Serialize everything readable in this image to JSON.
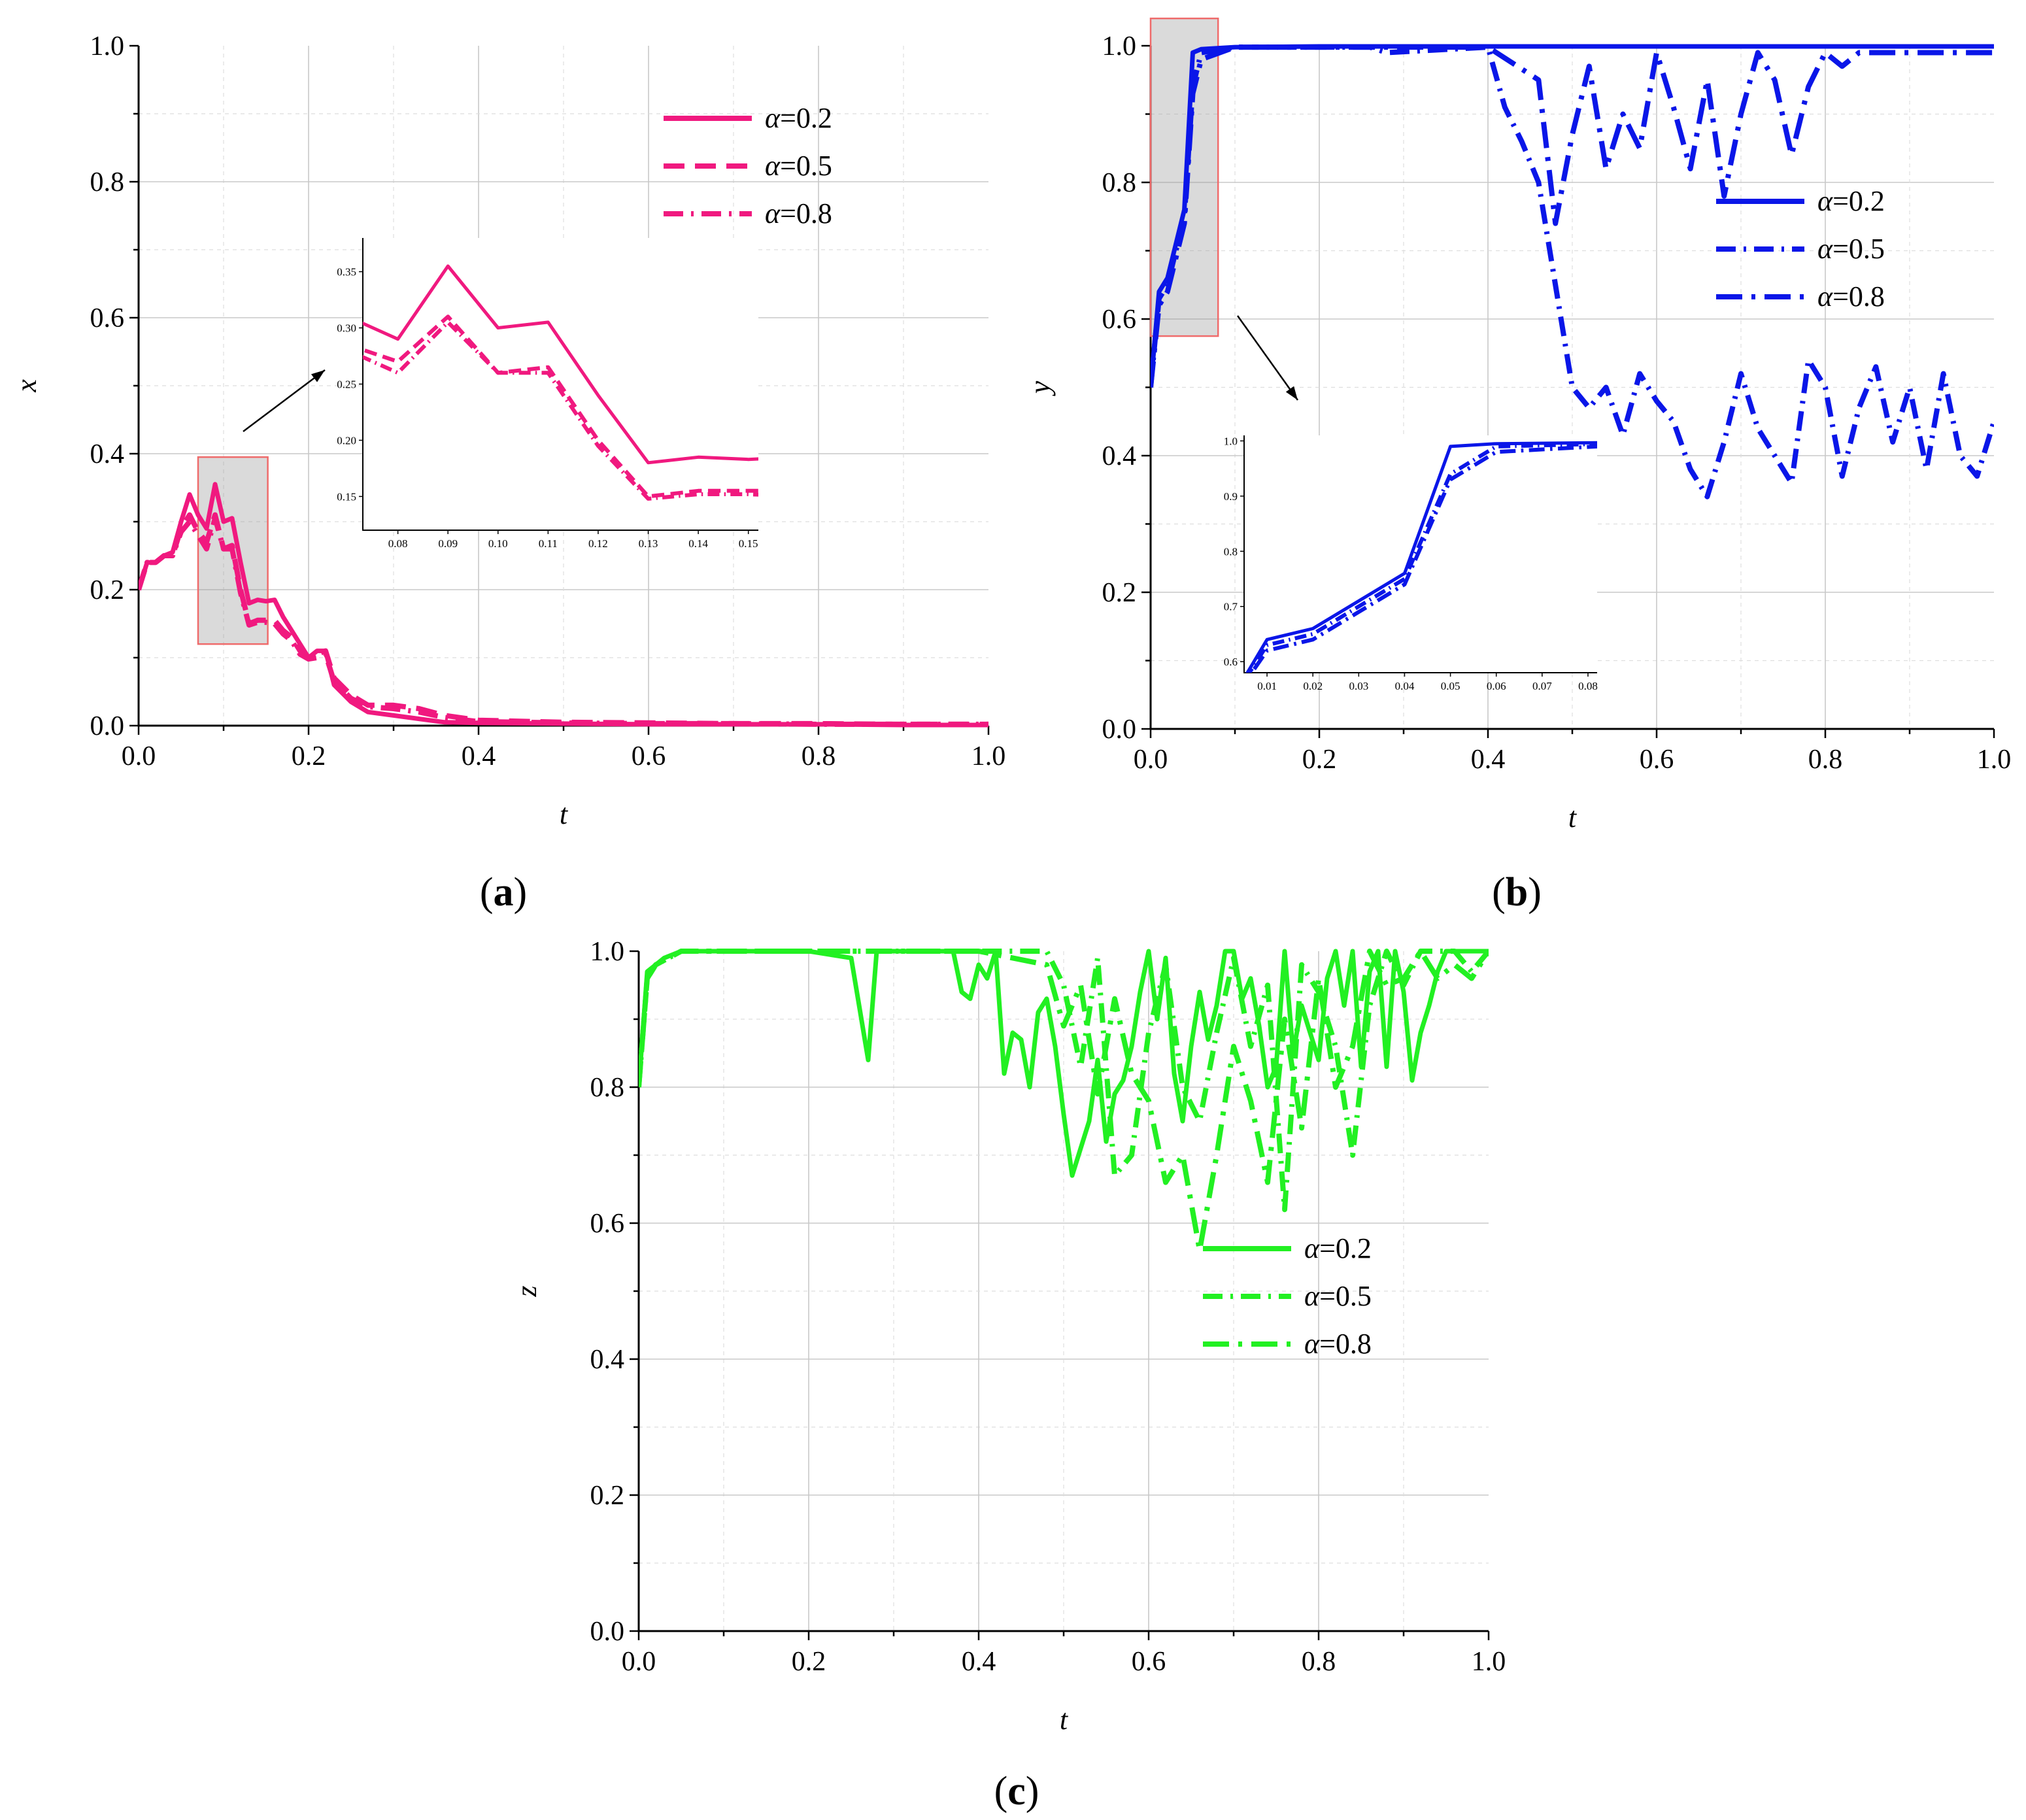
{
  "figure_title": "",
  "chart_data": [
    {
      "panel": "(a)",
      "type": "line",
      "xlabel": "t",
      "ylabel": "x",
      "xlim": [
        0,
        1
      ],
      "ylim": [
        0,
        1
      ],
      "xticks": [
        "0.0",
        "0.2",
        "0.4",
        "0.6",
        "0.8",
        "1.0"
      ],
      "yticks": [
        "0.0",
        "0.2",
        "0.4",
        "0.6",
        "0.8",
        "1.0"
      ],
      "color": "#f0197f",
      "legend_position": "top-right",
      "series": [
        {
          "name": "α=0.2",
          "style": "solid",
          "x": [
            0,
            0.01,
            0.02,
            0.03,
            0.04,
            0.05,
            0.06,
            0.07,
            0.08,
            0.09,
            0.1,
            0.11,
            0.12,
            0.13,
            0.14,
            0.15,
            0.16,
            0.17,
            0.18,
            0.19,
            0.2,
            0.21,
            0.22,
            0.23,
            0.25,
            0.27,
            0.3,
            0.33,
            0.36,
            0.4,
            0.5,
            0.6,
            0.7,
            0.8,
            0.9,
            1.0
          ],
          "y": [
            0.2,
            0.24,
            0.24,
            0.25,
            0.255,
            0.3,
            0.34,
            0.31,
            0.29,
            0.355,
            0.3,
            0.305,
            0.24,
            0.18,
            0.185,
            0.183,
            0.185,
            0.16,
            0.14,
            0.12,
            0.1,
            0.11,
            0.11,
            0.06,
            0.035,
            0.02,
            0.015,
            0.01,
            0.005,
            0.004,
            0.003,
            0.002,
            0.002,
            0.002,
            0.001,
            0.001
          ]
        },
        {
          "name": "α=0.5",
          "style": "dashed",
          "x": [
            0,
            0.01,
            0.02,
            0.03,
            0.04,
            0.05,
            0.06,
            0.07,
            0.08,
            0.09,
            0.1,
            0.11,
            0.12,
            0.13,
            0.14,
            0.15,
            0.16,
            0.17,
            0.18,
            0.19,
            0.2,
            0.21,
            0.22,
            0.23,
            0.25,
            0.27,
            0.3,
            0.33,
            0.36,
            0.4,
            0.5,
            0.6,
            0.7,
            0.8,
            0.9,
            1.0
          ],
          "y": [
            0.2,
            0.24,
            0.24,
            0.25,
            0.25,
            0.29,
            0.31,
            0.285,
            0.27,
            0.31,
            0.26,
            0.265,
            0.2,
            0.15,
            0.155,
            0.155,
            0.155,
            0.14,
            0.13,
            0.11,
            0.1,
            0.105,
            0.11,
            0.07,
            0.045,
            0.03,
            0.03,
            0.025,
            0.015,
            0.008,
            0.005,
            0.004,
            0.003,
            0.003,
            0.002,
            0.002
          ]
        },
        {
          "name": "α=0.8",
          "style": "dash-dot",
          "x": [
            0,
            0.01,
            0.02,
            0.03,
            0.04,
            0.05,
            0.06,
            0.07,
            0.08,
            0.09,
            0.1,
            0.11,
            0.12,
            0.13,
            0.14,
            0.15,
            0.16,
            0.17,
            0.18,
            0.19,
            0.2,
            0.21,
            0.22,
            0.23,
            0.25,
            0.27,
            0.3,
            0.33,
            0.36,
            0.4,
            0.5,
            0.6,
            0.7,
            0.8,
            0.9,
            1.0
          ],
          "y": [
            0.2,
            0.24,
            0.24,
            0.25,
            0.25,
            0.285,
            0.3,
            0.28,
            0.26,
            0.305,
            0.26,
            0.26,
            0.195,
            0.148,
            0.152,
            0.152,
            0.15,
            0.135,
            0.125,
            0.105,
            0.098,
            0.1,
            0.105,
            0.065,
            0.04,
            0.028,
            0.025,
            0.02,
            0.012,
            0.006,
            0.004,
            0.003,
            0.003,
            0.002,
            0.002,
            0.002
          ]
        }
      ],
      "inset": {
        "xlim": [
          0.073,
          0.152
        ],
        "ylim": [
          0.12,
          0.38
        ],
        "xticks": [
          "0.08",
          "0.09",
          "0.10",
          "0.11",
          "0.12",
          "0.13",
          "0.14",
          "0.15"
        ],
        "yticks": [
          "0.15",
          "0.20",
          "0.25",
          "0.30",
          "0.35"
        ],
        "highlight_region": {
          "x": [
            0.07,
            0.152
          ],
          "y": [
            0.12,
            0.395
          ]
        }
      }
    },
    {
      "panel": "(b)",
      "type": "line",
      "xlabel": "t",
      "ylabel": "y",
      "xlim": [
        0,
        1
      ],
      "ylim": [
        0,
        1
      ],
      "xticks": [
        "0.0",
        "0.2",
        "0.4",
        "0.6",
        "0.8",
        "1.0"
      ],
      "yticks": [
        "0.0",
        "0.2",
        "0.4",
        "0.6",
        "0.8",
        "1.0"
      ],
      "color": "#0a16e8",
      "legend_position": "center-right",
      "series": [
        {
          "name": "α=0.2",
          "style": "solid",
          "x": [
            0,
            0.01,
            0.02,
            0.03,
            0.04,
            0.05,
            0.06,
            0.1,
            0.2,
            0.4,
            0.6,
            0.8,
            1.0
          ],
          "y": [
            0.5,
            0.64,
            0.66,
            0.71,
            0.76,
            0.99,
            0.995,
            0.998,
            0.999,
            0.999,
            0.999,
            0.999,
            0.999
          ]
        },
        {
          "name": "α=0.5",
          "style": "dash-dot",
          "x": [
            0,
            0.01,
            0.02,
            0.03,
            0.04,
            0.05,
            0.06,
            0.1,
            0.2,
            0.26,
            0.28,
            0.4,
            0.42,
            0.44,
            0.46,
            0.48,
            0.5,
            0.52,
            0.54,
            0.56,
            0.58,
            0.6,
            0.62,
            0.64,
            0.66,
            0.68,
            0.7,
            0.72,
            0.74,
            0.76,
            0.78,
            0.8,
            0.82,
            0.84,
            0.86,
            0.88,
            0.9,
            0.92,
            0.94,
            0.96,
            0.98,
            1.0
          ],
          "y": [
            0.5,
            0.63,
            0.65,
            0.7,
            0.75,
            0.94,
            0.99,
            0.998,
            0.998,
            0.998,
            0.99,
            0.998,
            0.91,
            0.86,
            0.8,
            0.65,
            0.5,
            0.47,
            0.5,
            0.43,
            0.52,
            0.48,
            0.45,
            0.38,
            0.34,
            0.42,
            0.52,
            0.44,
            0.4,
            0.36,
            0.54,
            0.5,
            0.37,
            0.47,
            0.53,
            0.42,
            0.5,
            0.38,
            0.52,
            0.4,
            0.37,
            0.45
          ]
        },
        {
          "name": "α=0.8",
          "style": "dash-dot-long",
          "x": [
            0,
            0.01,
            0.02,
            0.03,
            0.04,
            0.05,
            0.06,
            0.1,
            0.2,
            0.4,
            0.46,
            0.48,
            0.5,
            0.52,
            0.54,
            0.56,
            0.58,
            0.6,
            0.62,
            0.64,
            0.66,
            0.68,
            0.7,
            0.72,
            0.74,
            0.76,
            0.78,
            0.8,
            0.82,
            0.84,
            0.86,
            0.88,
            0.9,
            0.92,
            0.94,
            0.96,
            0.98,
            1.0
          ],
          "y": [
            0.5,
            0.62,
            0.64,
            0.69,
            0.74,
            0.93,
            0.98,
            0.998,
            0.998,
            0.998,
            0.95,
            0.74,
            0.87,
            0.97,
            0.82,
            0.9,
            0.85,
            0.99,
            0.91,
            0.82,
            0.95,
            0.78,
            0.9,
            0.99,
            0.95,
            0.84,
            0.94,
            0.99,
            0.97,
            0.99,
            0.99,
            0.99,
            0.99,
            0.99,
            0.99,
            0.99,
            0.99,
            0.99
          ]
        }
      ],
      "inset": {
        "xlim": [
          0.005,
          0.082
        ],
        "ylim": [
          0.58,
          1.01
        ],
        "xticks": [
          "0.01",
          "0.02",
          "0.03",
          "0.04",
          "0.05",
          "0.06",
          "0.07",
          "0.08"
        ],
        "yticks": [
          "0.6",
          "0.7",
          "0.8",
          "0.9",
          "1.0"
        ],
        "highlight_region": {
          "x": [
            0.0,
            0.08
          ],
          "y": [
            0.575,
            1.04
          ]
        }
      }
    },
    {
      "panel": "(c)",
      "type": "line",
      "xlabel": "t",
      "ylabel": "z",
      "xlim": [
        0,
        1
      ],
      "ylim": [
        0,
        1
      ],
      "xticks": [
        "0.0",
        "0.2",
        "0.4",
        "0.6",
        "0.8",
        "1.0"
      ],
      "yticks": [
        "0.0",
        "0.2",
        "0.4",
        "0.6",
        "0.8",
        "1.0"
      ],
      "color": "#22f022",
      "legend_position": "center-right",
      "series": [
        {
          "name": "α=0.2",
          "style": "solid",
          "x": [
            0,
            0.01,
            0.02,
            0.03,
            0.05,
            0.1,
            0.2,
            0.25,
            0.27,
            0.28,
            0.3,
            0.37,
            0.38,
            0.39,
            0.4,
            0.41,
            0.42,
            0.43,
            0.44,
            0.45,
            0.46,
            0.47,
            0.48,
            0.49,
            0.5,
            0.51,
            0.52,
            0.53,
            0.54,
            0.55,
            0.56,
            0.57,
            0.58,
            0.59,
            0.6,
            0.61,
            0.62,
            0.63,
            0.64,
            0.65,
            0.66,
            0.67,
            0.68,
            0.69,
            0.7,
            0.71,
            0.72,
            0.73,
            0.74,
            0.75,
            0.76,
            0.77,
            0.78,
            0.79,
            0.8,
            0.81,
            0.82,
            0.83,
            0.84,
            0.85,
            0.86,
            0.87,
            0.88,
            0.89,
            0.9,
            0.91,
            0.92,
            0.93,
            0.94,
            0.95,
            0.96,
            0.97,
            0.98,
            0.99,
            1.0
          ],
          "y": [
            0.8,
            0.97,
            0.98,
            0.99,
            1.0,
            1.0,
            1.0,
            0.99,
            0.84,
            1.0,
            1.0,
            1.0,
            0.94,
            0.93,
            0.98,
            0.96,
            1.0,
            0.82,
            0.88,
            0.87,
            0.8,
            0.91,
            0.93,
            0.86,
            0.76,
            0.67,
            0.71,
            0.75,
            0.84,
            0.72,
            0.79,
            0.81,
            0.86,
            0.94,
            1.0,
            0.9,
            0.99,
            0.82,
            0.75,
            0.86,
            0.94,
            0.87,
            0.92,
            1.0,
            1.0,
            0.93,
            0.96,
            0.89,
            0.8,
            0.83,
            1.0,
            0.85,
            0.92,
            0.88,
            0.84,
            0.96,
            1.0,
            0.92,
            1.0,
            0.83,
            0.97,
            1.0,
            0.83,
            1.0,
            0.94,
            0.81,
            0.88,
            0.92,
            0.97,
            1.0,
            1.0,
            1.0,
            1.0,
            1.0,
            1.0
          ]
        },
        {
          "name": "α=0.5",
          "style": "dash-dot",
          "x": [
            0,
            0.01,
            0.02,
            0.05,
            0.1,
            0.4,
            0.48,
            0.5,
            0.52,
            0.54,
            0.56,
            0.58,
            0.6,
            0.62,
            0.64,
            0.66,
            0.68,
            0.7,
            0.72,
            0.74,
            0.76,
            0.78,
            0.8,
            0.82,
            0.84,
            0.86,
            0.88,
            0.9,
            0.92,
            0.94,
            0.96,
            0.98,
            1.0
          ],
          "y": [
            0.8,
            0.96,
            0.98,
            1.0,
            1.0,
            1.0,
            1.0,
            0.95,
            0.83,
            0.99,
            0.67,
            0.7,
            0.88,
            0.98,
            0.8,
            0.75,
            0.88,
            0.99,
            0.86,
            0.95,
            0.62,
            0.98,
            0.94,
            0.86,
            0.7,
            0.92,
            1.0,
            0.95,
            1.0,
            1.0,
            1.0,
            0.97,
            1.0
          ]
        },
        {
          "name": "α=0.8",
          "style": "dash-dot-long",
          "x": [
            0,
            0.01,
            0.02,
            0.05,
            0.1,
            0.4,
            0.48,
            0.5,
            0.52,
            0.54,
            0.56,
            0.58,
            0.6,
            0.62,
            0.64,
            0.66,
            0.68,
            0.7,
            0.72,
            0.74,
            0.76,
            0.78,
            0.8,
            0.82,
            0.84,
            0.86,
            0.88,
            0.9,
            0.92,
            0.94,
            0.96,
            0.98,
            1.0
          ],
          "y": [
            0.8,
            0.96,
            0.98,
            1.0,
            1.0,
            1.0,
            0.98,
            0.89,
            0.95,
            0.79,
            0.93,
            0.82,
            0.78,
            0.66,
            0.7,
            0.56,
            0.7,
            0.86,
            0.78,
            0.66,
            0.9,
            0.74,
            0.96,
            0.8,
            0.86,
            1.0,
            0.95,
            0.96,
            1.0,
            0.96,
            0.98,
            0.96,
            1.0
          ]
        }
      ]
    }
  ]
}
